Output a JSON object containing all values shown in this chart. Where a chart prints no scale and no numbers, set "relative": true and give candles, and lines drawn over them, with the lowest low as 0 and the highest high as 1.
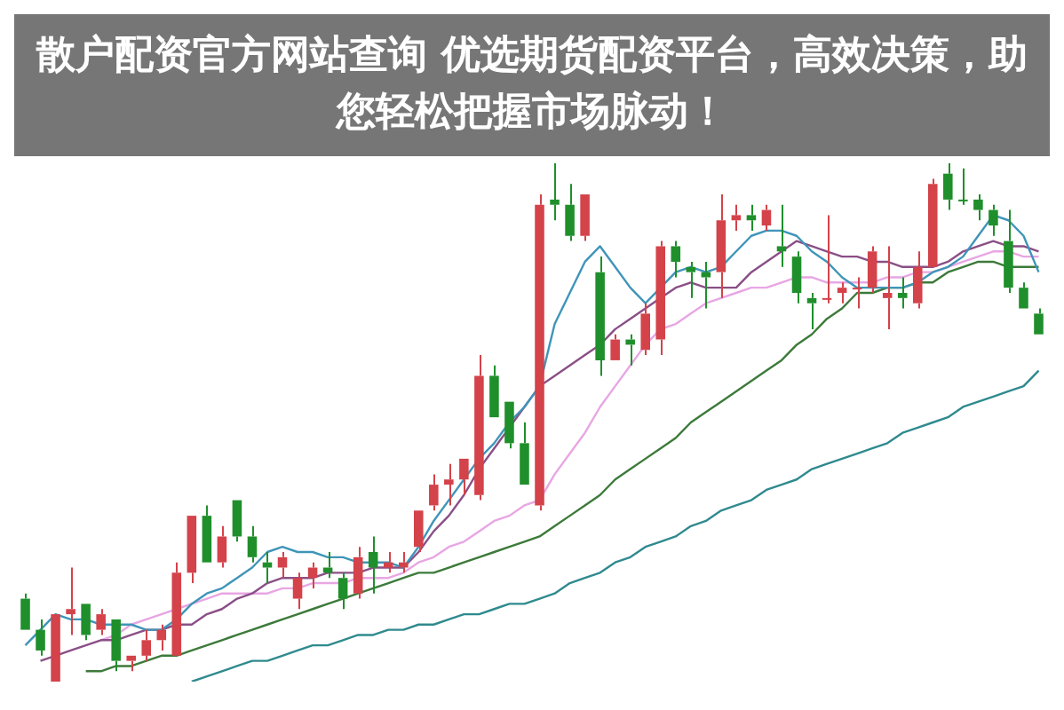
{
  "chart_data": {
    "type": "candlestick",
    "title": "散户配资官方网站查询 优选期货配资平台，高效决策，助您轻松把握市场脉动！",
    "relative": true,
    "categories": [
      null,
      null,
      null,
      null,
      null,
      null,
      null,
      null,
      null,
      null,
      null,
      null,
      null,
      null,
      null,
      null,
      null,
      null,
      null,
      null,
      null,
      null,
      null,
      null,
      null,
      null,
      null,
      null,
      null,
      null,
      null,
      null,
      null,
      null,
      null,
      null,
      null,
      null,
      null,
      null,
      null,
      null,
      null,
      null,
      null,
      null,
      null,
      null,
      null,
      null,
      null,
      null,
      null,
      null,
      null,
      null,
      null,
      null,
      null,
      null,
      null,
      null,
      null,
      null,
      null,
      null,
      null,
      null
    ],
    "ohlc": [
      [
        0.16,
        0.17,
        0.1,
        0.1
      ],
      [
        0.1,
        0.12,
        0.05,
        0.06
      ],
      [
        0.0,
        0.13,
        0,
        0.13
      ],
      [
        0.13,
        0.22,
        0.09,
        0.14
      ],
      [
        0.15,
        0.15,
        0.08,
        0.09
      ],
      [
        0.1,
        0.14,
        0.09,
        0.13
      ],
      [
        0.12,
        0.12,
        0.02,
        0.04
      ],
      [
        0.04,
        0.05,
        0.02,
        0.05
      ],
      [
        0.05,
        0.1,
        0.04,
        0.08
      ],
      [
        0.08,
        0.11,
        0.06,
        0.1
      ],
      [
        0.05,
        0.23,
        0.05,
        0.21
      ],
      [
        0.21,
        0.32,
        0.19,
        0.32
      ],
      [
        0.32,
        0.34,
        0.23,
        0.23
      ],
      [
        0.23,
        0.3,
        0.22,
        0.28
      ],
      [
        0.35,
        0.35,
        0.27,
        0.28
      ],
      [
        0.28,
        0.3,
        0.23,
        0.24
      ],
      [
        0.23,
        0.25,
        0.19,
        0.22
      ],
      [
        0.22,
        0.25,
        0.2,
        0.24
      ],
      [
        0.16,
        0.21,
        0.14,
        0.2
      ],
      [
        0.2,
        0.23,
        0.18,
        0.22
      ],
      [
        0.22,
        0.25,
        0.2,
        0.21
      ],
      [
        0.2,
        0.21,
        0.14,
        0.16
      ],
      [
        0.17,
        0.26,
        0.16,
        0.24
      ],
      [
        0.25,
        0.28,
        0.17,
        0.22
      ],
      [
        0.22,
        0.25,
        0.21,
        0.23
      ],
      [
        0.22,
        0.25,
        0.21,
        0.23
      ],
      [
        0.26,
        0.33,
        0.25,
        0.33
      ],
      [
        0.34,
        0.4,
        0.33,
        0.38
      ],
      [
        0.38,
        0.42,
        0.34,
        0.39
      ],
      [
        0.39,
        0.43,
        0.36,
        0.43
      ],
      [
        0.36,
        0.63,
        0.35,
        0.59
      ],
      [
        0.59,
        0.61,
        0.51,
        0.51
      ],
      [
        0.54,
        0.54,
        0.45,
        0.46
      ],
      [
        0.46,
        0.5,
        0.38,
        0.38
      ],
      [
        0.34,
        0.94,
        0.33,
        0.92
      ],
      [
        0.93,
        1,
        0.89,
        0.92
      ],
      [
        0.92,
        0.96,
        0.85,
        0.86
      ],
      [
        0.86,
        0.94,
        0.85,
        0.94
      ],
      [
        0.79,
        0.82,
        0.59,
        0.62
      ],
      [
        0.62,
        0.67,
        0.62,
        0.66
      ],
      [
        0.66,
        0.67,
        0.61,
        0.65
      ],
      [
        0.64,
        0.73,
        0.63,
        0.71
      ],
      [
        0.66,
        0.85,
        0.63,
        0.84
      ],
      [
        0.84,
        0.85,
        0.78,
        0.81
      ],
      [
        0.8,
        0.81,
        0.74,
        0.79
      ],
      [
        0.79,
        0.81,
        0.72,
        0.78
      ],
      [
        0.79,
        0.94,
        0.74,
        0.89
      ],
      [
        0.89,
        0.92,
        0.87,
        0.9
      ],
      [
        0.9,
        0.92,
        0.87,
        0.89
      ],
      [
        0.88,
        0.92,
        0.87,
        0.91
      ],
      [
        0.84,
        0.92,
        0.8,
        0.83
      ],
      [
        0.82,
        0.83,
        0.73,
        0.75
      ],
      [
        0.74,
        0.75,
        0.68,
        0.73
      ],
      [
        0.74,
        0.9,
        0.73,
        0.74
      ],
      [
        0.75,
        0.77,
        0.73,
        0.76
      ],
      [
        0.76,
        0.78,
        0.72,
        0.76
      ],
      [
        0.76,
        0.84,
        0.75,
        0.83
      ],
      [
        0.74,
        0.84,
        0.68,
        0.75
      ],
      [
        0.75,
        0.78,
        0.72,
        0.74
      ],
      [
        0.73,
        0.83,
        0.72,
        0.8
      ],
      [
        0.8,
        0.97,
        0.8,
        0.96
      ],
      [
        0.98,
        1,
        0.91,
        0.93
      ],
      [
        0.93,
        0.99,
        0.92,
        0.93
      ],
      [
        0.93,
        0.94,
        0.89,
        0.91
      ],
      [
        0.91,
        0.92,
        0.86,
        0.88
      ],
      [
        0.85,
        0.91,
        0.75,
        0.76
      ],
      [
        0.76,
        0.77,
        0.72,
        0.72
      ],
      [
        0.71,
        0.72,
        0.67,
        0.67
      ]
    ],
    "colors": [
      "#1f8f2c",
      "#1f8f2c",
      "#d4424a",
      "#d4424a",
      "#1f8f2c",
      "#d4424a",
      "#1f8f2c",
      "#d4424a",
      "#d4424a",
      "#d4424a",
      "#d4424a",
      "#d4424a",
      "#1f8f2c",
      "#d4424a",
      "#1f8f2c",
      "#1f8f2c",
      "#1f8f2c",
      "#d4424a",
      "#d4424a",
      "#d4424a",
      "#1f8f2c",
      "#1f8f2c",
      "#d4424a",
      "#1f8f2c",
      "#d4424a",
      "#d4424a",
      "#d4424a",
      "#d4424a",
      "#d4424a",
      "#d4424a",
      "#d4424a",
      "#1f8f2c",
      "#1f8f2c",
      "#1f8f2c",
      "#d4424a",
      "#1f8f2c",
      "#1f8f2c",
      "#d4424a",
      "#1f8f2c",
      "#d4424a",
      "#1f8f2c",
      "#d4424a",
      "#d4424a",
      "#1f8f2c",
      "#1f8f2c",
      "#1f8f2c",
      "#d4424a",
      "#d4424a",
      "#1f8f2c",
      "#d4424a",
      "#1f8f2c",
      "#1f8f2c",
      "#1f8f2c",
      "#d4424a",
      "#d4424a",
      "#d4424a",
      "#d4424a",
      "#d4424a",
      "#1f8f2c",
      "#d4424a",
      "#d4424a",
      "#1f8f2c",
      "#1f8f2c",
      "#1f8f2c",
      "#1f8f2c",
      "#1f8f2c",
      "#1f8f2c",
      "#1f8f2c"
    ],
    "series": [
      {
        "type": "line",
        "color": "#3f95b8",
        "values": [
          0.07,
          0.1,
          0.13,
          0.12,
          0.12,
          0.11,
          0.11,
          0.11,
          0.1,
          0.1,
          0.12,
          0.15,
          0.17,
          0.18,
          0.2,
          0.22,
          0.25,
          0.26,
          0.25,
          0.25,
          0.24,
          0.24,
          0.23,
          0.23,
          0.23,
          0.22,
          0.26,
          0.31,
          0.35,
          0.39,
          0.43,
          0.46,
          0.5,
          0.53,
          0.57,
          0.69,
          0.75,
          0.81,
          0.84,
          0.8,
          0.76,
          0.73,
          0.76,
          0.79,
          0.8,
          0.79,
          0.8,
          0.83,
          0.86,
          0.87,
          0.87,
          0.86,
          0.83,
          0.81,
          0.78,
          0.76,
          0.76,
          0.76,
          0.76,
          0.77,
          0.79,
          0.8,
          0.82,
          0.86,
          0.9,
          0.89,
          0.86,
          0.79
        ]
      },
      {
        "type": "line",
        "color": "#8a4f86",
        "values": [
          null,
          0.04,
          0.05,
          0.06,
          0.07,
          0.08,
          0.08,
          0.09,
          0.1,
          0.1,
          0.11,
          0.11,
          0.13,
          0.14,
          0.16,
          0.17,
          0.19,
          0.2,
          0.2,
          0.2,
          0.21,
          0.21,
          0.21,
          0.22,
          0.22,
          0.22,
          0.25,
          0.29,
          0.32,
          0.36,
          0.41,
          0.45,
          0.49,
          0.53,
          0.57,
          0.59,
          0.61,
          0.63,
          0.65,
          0.68,
          0.7,
          0.72,
          0.74,
          0.76,
          0.77,
          0.76,
          0.76,
          0.76,
          0.79,
          0.81,
          0.83,
          0.85,
          0.84,
          0.83,
          0.82,
          0.82,
          0.81,
          0.81,
          0.8,
          0.8,
          0.8,
          0.81,
          0.83,
          0.84,
          0.85,
          0.84,
          0.84,
          0.83
        ]
      },
      {
        "type": "line",
        "color": "#e8a6e4",
        "values": [
          null,
          null,
          null,
          null,
          null,
          0.08,
          0.09,
          0.11,
          0.12,
          0.13,
          0.14,
          0.15,
          0.16,
          0.17,
          0.17,
          0.17,
          0.17,
          0.18,
          0.18,
          0.19,
          0.19,
          0.19,
          0.2,
          0.2,
          0.2,
          0.21,
          0.23,
          0.24,
          0.26,
          0.27,
          0.29,
          0.31,
          0.32,
          0.34,
          0.35,
          0.4,
          0.44,
          0.48,
          0.53,
          0.57,
          0.61,
          0.65,
          0.68,
          0.69,
          0.71,
          0.73,
          0.74,
          0.75,
          0.76,
          0.76,
          0.77,
          0.78,
          0.78,
          0.77,
          0.77,
          0.77,
          0.77,
          0.78,
          0.78,
          0.79,
          0.79,
          0.8,
          0.81,
          0.82,
          0.83,
          0.83,
          0.82,
          0.82
        ]
      },
      {
        "type": "line",
        "color": "#3c7a3a",
        "values": [
          null,
          null,
          null,
          null,
          0.02,
          0.02,
          0.03,
          0.03,
          0.04,
          0.05,
          0.05,
          0.06,
          0.07,
          0.08,
          0.09,
          0.1,
          0.11,
          0.12,
          0.13,
          0.14,
          0.15,
          0.16,
          0.17,
          0.18,
          0.19,
          0.2,
          0.21,
          0.21,
          0.22,
          0.23,
          0.24,
          0.25,
          0.26,
          0.27,
          0.28,
          0.3,
          0.32,
          0.34,
          0.36,
          0.39,
          0.41,
          0.43,
          0.45,
          0.47,
          0.5,
          0.52,
          0.54,
          0.56,
          0.58,
          0.6,
          0.62,
          0.65,
          0.67,
          0.7,
          0.72,
          0.75,
          0.75,
          0.76,
          0.76,
          0.77,
          0.77,
          0.79,
          0.8,
          0.81,
          0.81,
          0.8,
          0.8,
          0.8
        ]
      },
      {
        "type": "line",
        "color": "#2f8a8e",
        "values": [
          null,
          null,
          null,
          null,
          null,
          null,
          null,
          null,
          null,
          null,
          null,
          0.0,
          0.01,
          0.02,
          0.03,
          0.04,
          0.04,
          0.05,
          0.06,
          0.07,
          0.07,
          0.08,
          0.09,
          0.09,
          0.1,
          0.1,
          0.11,
          0.11,
          0.12,
          0.13,
          0.13,
          0.14,
          0.15,
          0.15,
          0.16,
          0.17,
          0.19,
          0.2,
          0.21,
          0.23,
          0.24,
          0.26,
          0.27,
          0.28,
          0.3,
          0.31,
          0.33,
          0.34,
          0.35,
          0.37,
          0.38,
          0.39,
          0.41,
          0.42,
          0.43,
          0.44,
          0.45,
          0.46,
          0.48,
          0.49,
          0.5,
          0.51,
          0.53,
          0.54,
          0.55,
          0.56,
          0.57,
          0.6
        ]
      }
    ]
  }
}
